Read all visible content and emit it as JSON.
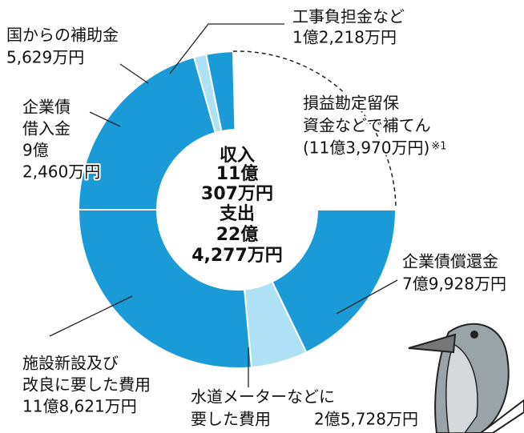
{
  "chart_data": {
    "type": "donut",
    "rings": [
      {
        "name": "収入",
        "total": 110307,
        "total_label": [
          "11億",
          "307万円"
        ],
        "segments": [
          {
            "label": [
              "企業債",
              "借入金"
            ],
            "value": 92460,
            "value_label": [
              "9億",
              "2,460万円"
            ],
            "color": "#1b9ad8",
            "style": "solid"
          },
          {
            "label": [
              "国からの補助金"
            ],
            "value": 5629,
            "value_label": [
              "5,629万円"
            ],
            "color": "#aee0f6",
            "style": "solid"
          },
          {
            "label": [
              "工事負担金など"
            ],
            "value": 12218,
            "value_label": [
              "1億2,218万円"
            ],
            "color": "#1b9ad8",
            "style": "solid"
          },
          {
            "label": [
              "損益勘定留保",
              "資金などで補てん"
            ],
            "value": 113970,
            "value_label": [
              "(11億3,970万円)"
            ],
            "note": "※1",
            "color": "#ffffff",
            "style": "dashed"
          }
        ]
      },
      {
        "name": "支出",
        "total": 224277,
        "total_label": [
          "22億",
          "4,277万円"
        ],
        "segments": [
          {
            "label": [
              "企業債償還金"
            ],
            "value": 79928,
            "value_label": [
              "7億9,928万円"
            ],
            "color": "#1b9ad8",
            "style": "solid"
          },
          {
            "label": [
              "水道メーターなどに",
              "要した費用"
            ],
            "value": 25728,
            "value_label": [
              "2億5,728万円"
            ],
            "color": "#aee0f6",
            "style": "solid"
          },
          {
            "label": [
              "施設新設及び",
              "改良に要した費用"
            ],
            "value": 118621,
            "value_label": [
              "11億8,621万円"
            ],
            "color": "#1b9ad8",
            "style": "solid"
          }
        ]
      }
    ]
  }
}
